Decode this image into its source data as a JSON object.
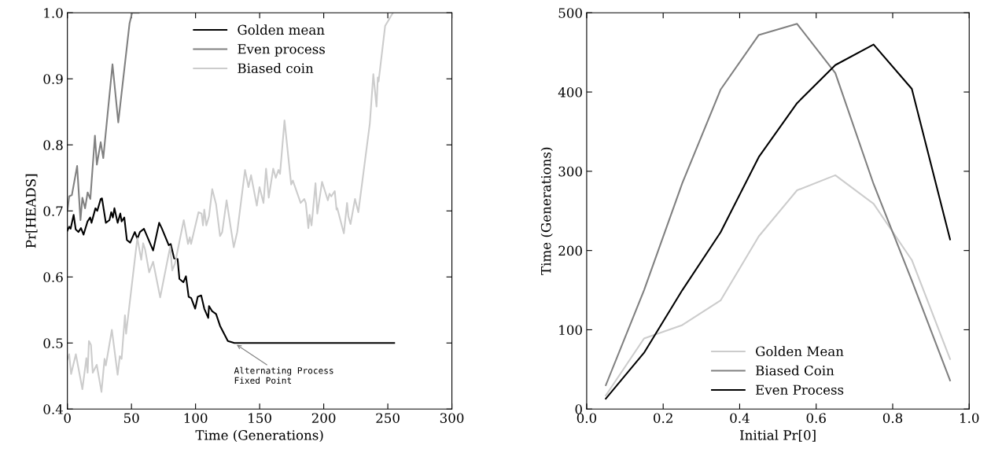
{
  "chart_data": [
    {
      "type": "line",
      "xlabel": "Time (Generations)",
      "ylabel": "Pr[HEADS]",
      "xlim": [
        0,
        300
      ],
      "ylim": [
        0.4,
        1.0
      ],
      "xticks": [
        0,
        50,
        100,
        150,
        200,
        250,
        300
      ],
      "yticks": [
        0.4,
        0.5,
        0.6,
        0.7,
        0.8,
        0.9,
        {
          "value": 1,
          "label": "1.0"
        }
      ],
      "legend": "top",
      "grid": false,
      "marker": "none",
      "line_style": "solid",
      "annotations": [
        {
          "text": "Alternating Process\nFixed Point",
          "x": 130,
          "y": 0.5
        }
      ],
      "series": [
        {
          "name": "Golden mean",
          "color": "#000000",
          "x": [
            0,
            1.4,
            2.5,
            4.9,
            6.5,
            8.6,
            10.6,
            12.6,
            15.7,
            17.8,
            18.8,
            21.9,
            23.3,
            26,
            27,
            30,
            32.8,
            34.2,
            35.5,
            36.7,
            39.2,
            41.3,
            42.3,
            44.4,
            46.4,
            49,
            52.6,
            54.6,
            56.6,
            59.7,
            66.9,
            71.6,
            73.6,
            79.1,
            80.6,
            83.3,
            86,
            87.4,
            90.5,
            92.5,
            94.6,
            96.6,
            99.7,
            101.7,
            104.4,
            106.8,
            109.9,
            110.5,
            113,
            116,
            119.1,
            125.2,
            130.3,
            255
          ],
          "values": [
            0.67,
            0.676,
            0.673,
            0.694,
            0.672,
            0.668,
            0.674,
            0.664,
            0.684,
            0.69,
            0.682,
            0.704,
            0.7,
            0.718,
            0.719,
            0.682,
            0.686,
            0.698,
            0.69,
            0.704,
            0.682,
            0.696,
            0.684,
            0.69,
            0.656,
            0.652,
            0.668,
            0.658,
            0.668,
            0.673,
            0.64,
            0.682,
            0.674,
            0.648,
            0.65,
            0.628,
            0.627,
            0.597,
            0.592,
            0.601,
            0.57,
            0.568,
            0.552,
            0.57,
            0.572,
            0.552,
            0.538,
            0.556,
            0.548,
            0.544,
            0.526,
            0.503,
            0.5,
            0.5
          ]
        },
        {
          "name": "Even process",
          "color": "#808080",
          "x": [
            0,
            1.4,
            3.5,
            7.6,
            10.2,
            11.7,
            13.8,
            15.8,
            17.9,
            21.5,
            23,
            26,
            28,
            35.2,
            39.7,
            48.5,
            50.5,
            55.6
          ],
          "values": [
            0.7,
            0.722,
            0.724,
            0.768,
            0.686,
            0.72,
            0.704,
            0.728,
            0.718,
            0.814,
            0.77,
            0.804,
            0.78,
            0.922,
            0.834,
            0.984,
            1.0,
            1.0
          ]
        },
        {
          "name": "Biased coin",
          "color": "#cccccc",
          "x": [
            0,
            1.4,
            2.9,
            6.6,
            11.7,
            14.8,
            15.8,
            16.8,
            18.4,
            19.8,
            22.9,
            26.6,
            29,
            30,
            34.7,
            39.2,
            40.9,
            42.3,
            44.9,
            45.8,
            54.6,
            57.6,
            59.1,
            60.7,
            63.8,
            66.9,
            72.4,
            80.2,
            81.8,
            83.9,
            90.8,
            94.1,
            95.5,
            96.5,
            102.3,
            104.7,
            105.8,
            106.8,
            108.4,
            110.5,
            113,
            116,
            119.1,
            120.8,
            124.2,
            129.8,
            132.5,
            138.6,
            141.3,
            143.3,
            147.8,
            149.9,
            153,
            155,
            157.1,
            160.6,
            162.6,
            164.7,
            165.9,
            169.4,
            174.6,
            175.9,
            182,
            184.8,
            186,
            188,
            189,
            190.5,
            193.6,
            195,
            198.7,
            203.2,
            204.5,
            205.9,
            208.6,
            210,
            210.6,
            215.7,
            218.2,
            219.2,
            220.9,
            224.4,
            227,
            236,
            238.7,
            241.2,
            242.2,
            242.8,
            247.9,
            254
          ],
          "values": [
            0.475,
            0.483,
            0.453,
            0.483,
            0.43,
            0.477,
            0.455,
            0.503,
            0.497,
            0.455,
            0.467,
            0.426,
            0.476,
            0.466,
            0.52,
            0.452,
            0.48,
            0.476,
            0.542,
            0.514,
            0.659,
            0.626,
            0.651,
            0.641,
            0.607,
            0.623,
            0.569,
            0.646,
            0.61,
            0.62,
            0.686,
            0.65,
            0.66,
            0.65,
            0.698,
            0.696,
            0.678,
            0.702,
            0.678,
            0.692,
            0.733,
            0.71,
            0.662,
            0.668,
            0.716,
            0.645,
            0.668,
            0.762,
            0.736,
            0.754,
            0.708,
            0.736,
            0.712,
            0.764,
            0.72,
            0.764,
            0.75,
            0.762,
            0.756,
            0.837,
            0.74,
            0.746,
            0.712,
            0.718,
            0.712,
            0.674,
            0.694,
            0.678,
            0.742,
            0.696,
            0.744,
            0.716,
            0.726,
            0.722,
            0.73,
            0.702,
            0.704,
            0.666,
            0.712,
            0.692,
            0.68,
            0.718,
            0.698,
            0.833,
            0.907,
            0.858,
            0.902,
            0.896,
            0.98,
            1.0
          ]
        }
      ]
    },
    {
      "type": "line",
      "xlabel": "Initial Pr[0]",
      "ylabel": "Time (Generations)",
      "xlim": [
        0,
        1.0
      ],
      "ylim": [
        0,
        500
      ],
      "xticks": [
        {
          "value": 0,
          "label": "0.0"
        },
        0.2,
        0.4,
        0.6,
        0.8,
        {
          "value": 1,
          "label": "1.0"
        }
      ],
      "yticks": [
        0,
        100,
        200,
        300,
        400,
        500
      ],
      "legend": "bottom",
      "grid": false,
      "marker": "none",
      "line_style": "solid",
      "x": [
        0.05,
        0.15,
        0.25,
        0.35,
        0.45,
        0.55,
        0.65,
        0.75,
        0.85,
        0.95
      ],
      "series": [
        {
          "name": "Golden Mean",
          "color": "#cccccc",
          "values": [
            17,
            89,
            106,
            137,
            218,
            276,
            295,
            259,
            188,
            63
          ]
        },
        {
          "name": "Biased Coin",
          "color": "#808080",
          "values": [
            30,
            150,
            285,
            403,
            472,
            486,
            424,
            284,
            162,
            36
          ]
        },
        {
          "name": "Even Process",
          "color": "#000000",
          "values": [
            13,
            71,
            150,
            223,
            318,
            386,
            434,
            460,
            404,
            214
          ]
        }
      ]
    }
  ]
}
